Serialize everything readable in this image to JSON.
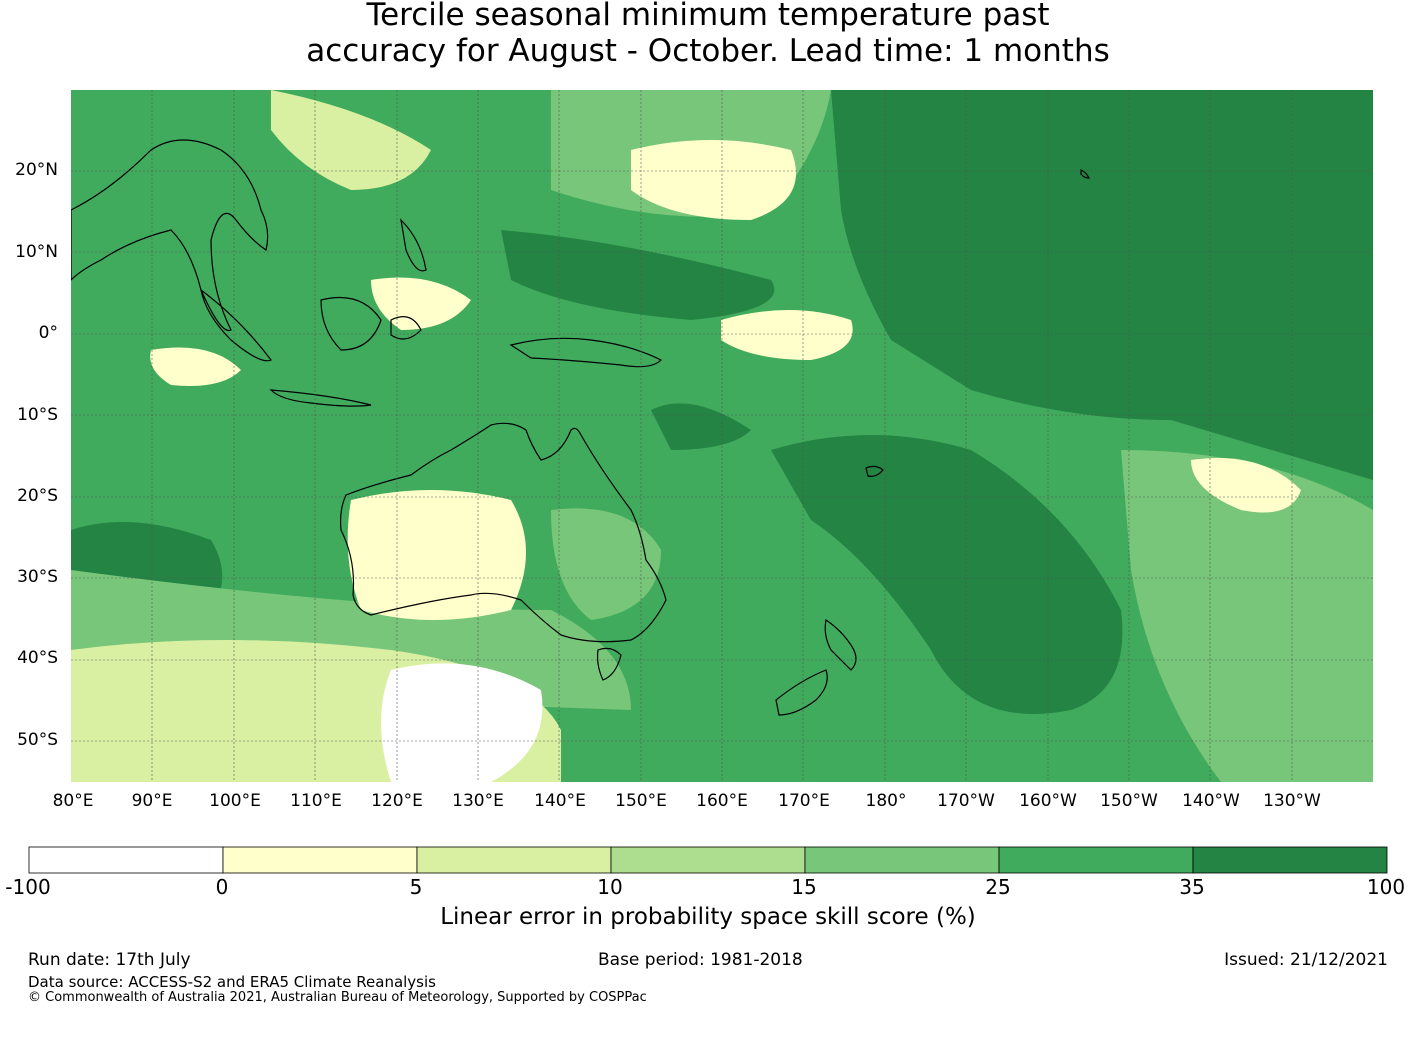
{
  "title_line1": "Tercile seasonal minimum temperature past",
  "title_line2": "accuracy for August - October. Lead time: 1 months",
  "lon_labels": [
    "80°E",
    "90°E",
    "100°E",
    "110°E",
    "120°E",
    "130°E",
    "140°E",
    "150°E",
    "160°E",
    "170°E",
    "180°",
    "170°W",
    "160°W",
    "150°W",
    "140°W",
    "130°W"
  ],
  "lat_labels": [
    "20°N",
    "10°N",
    "0°",
    "10°S",
    "20°S",
    "30°S",
    "40°S",
    "50°S"
  ],
  "colorbar": {
    "ticks": [
      "-100",
      "0",
      "5",
      "10",
      "15",
      "25",
      "35",
      "100"
    ],
    "colors": [
      "#ffffff",
      "#ffffcc",
      "#d9f0a3",
      "#addd8e",
      "#78c679",
      "#41ab5d",
      "#238443"
    ],
    "label": "Linear error in probability space skill score (%)"
  },
  "footer": {
    "run_date": "Run date: 17th July",
    "base_period": "Base period: 1981-2018",
    "issued": "Issued: 21/12/2021",
    "data_source": "Data source: ACCESS-S2 and ERA5 Climate Reanalysis",
    "copyright": "© Commonwealth of Australia 2021, Australian Bureau of Meteorology, Supported by COSPPac"
  },
  "map_extent": {
    "lon_min": 80,
    "lon_max": 240,
    "lat_min": -55,
    "lat_max": 30
  },
  "skill_regions": [
    {
      "label": "dark",
      "color": "#238443",
      "area": "central/east Pacific"
    },
    {
      "label": "light",
      "color": "#ffffcc",
      "area": "western Australia interior, Southern Ocean south of Australia, equatorial 160-175E, tropical 145-165E 10-25N"
    }
  ]
}
